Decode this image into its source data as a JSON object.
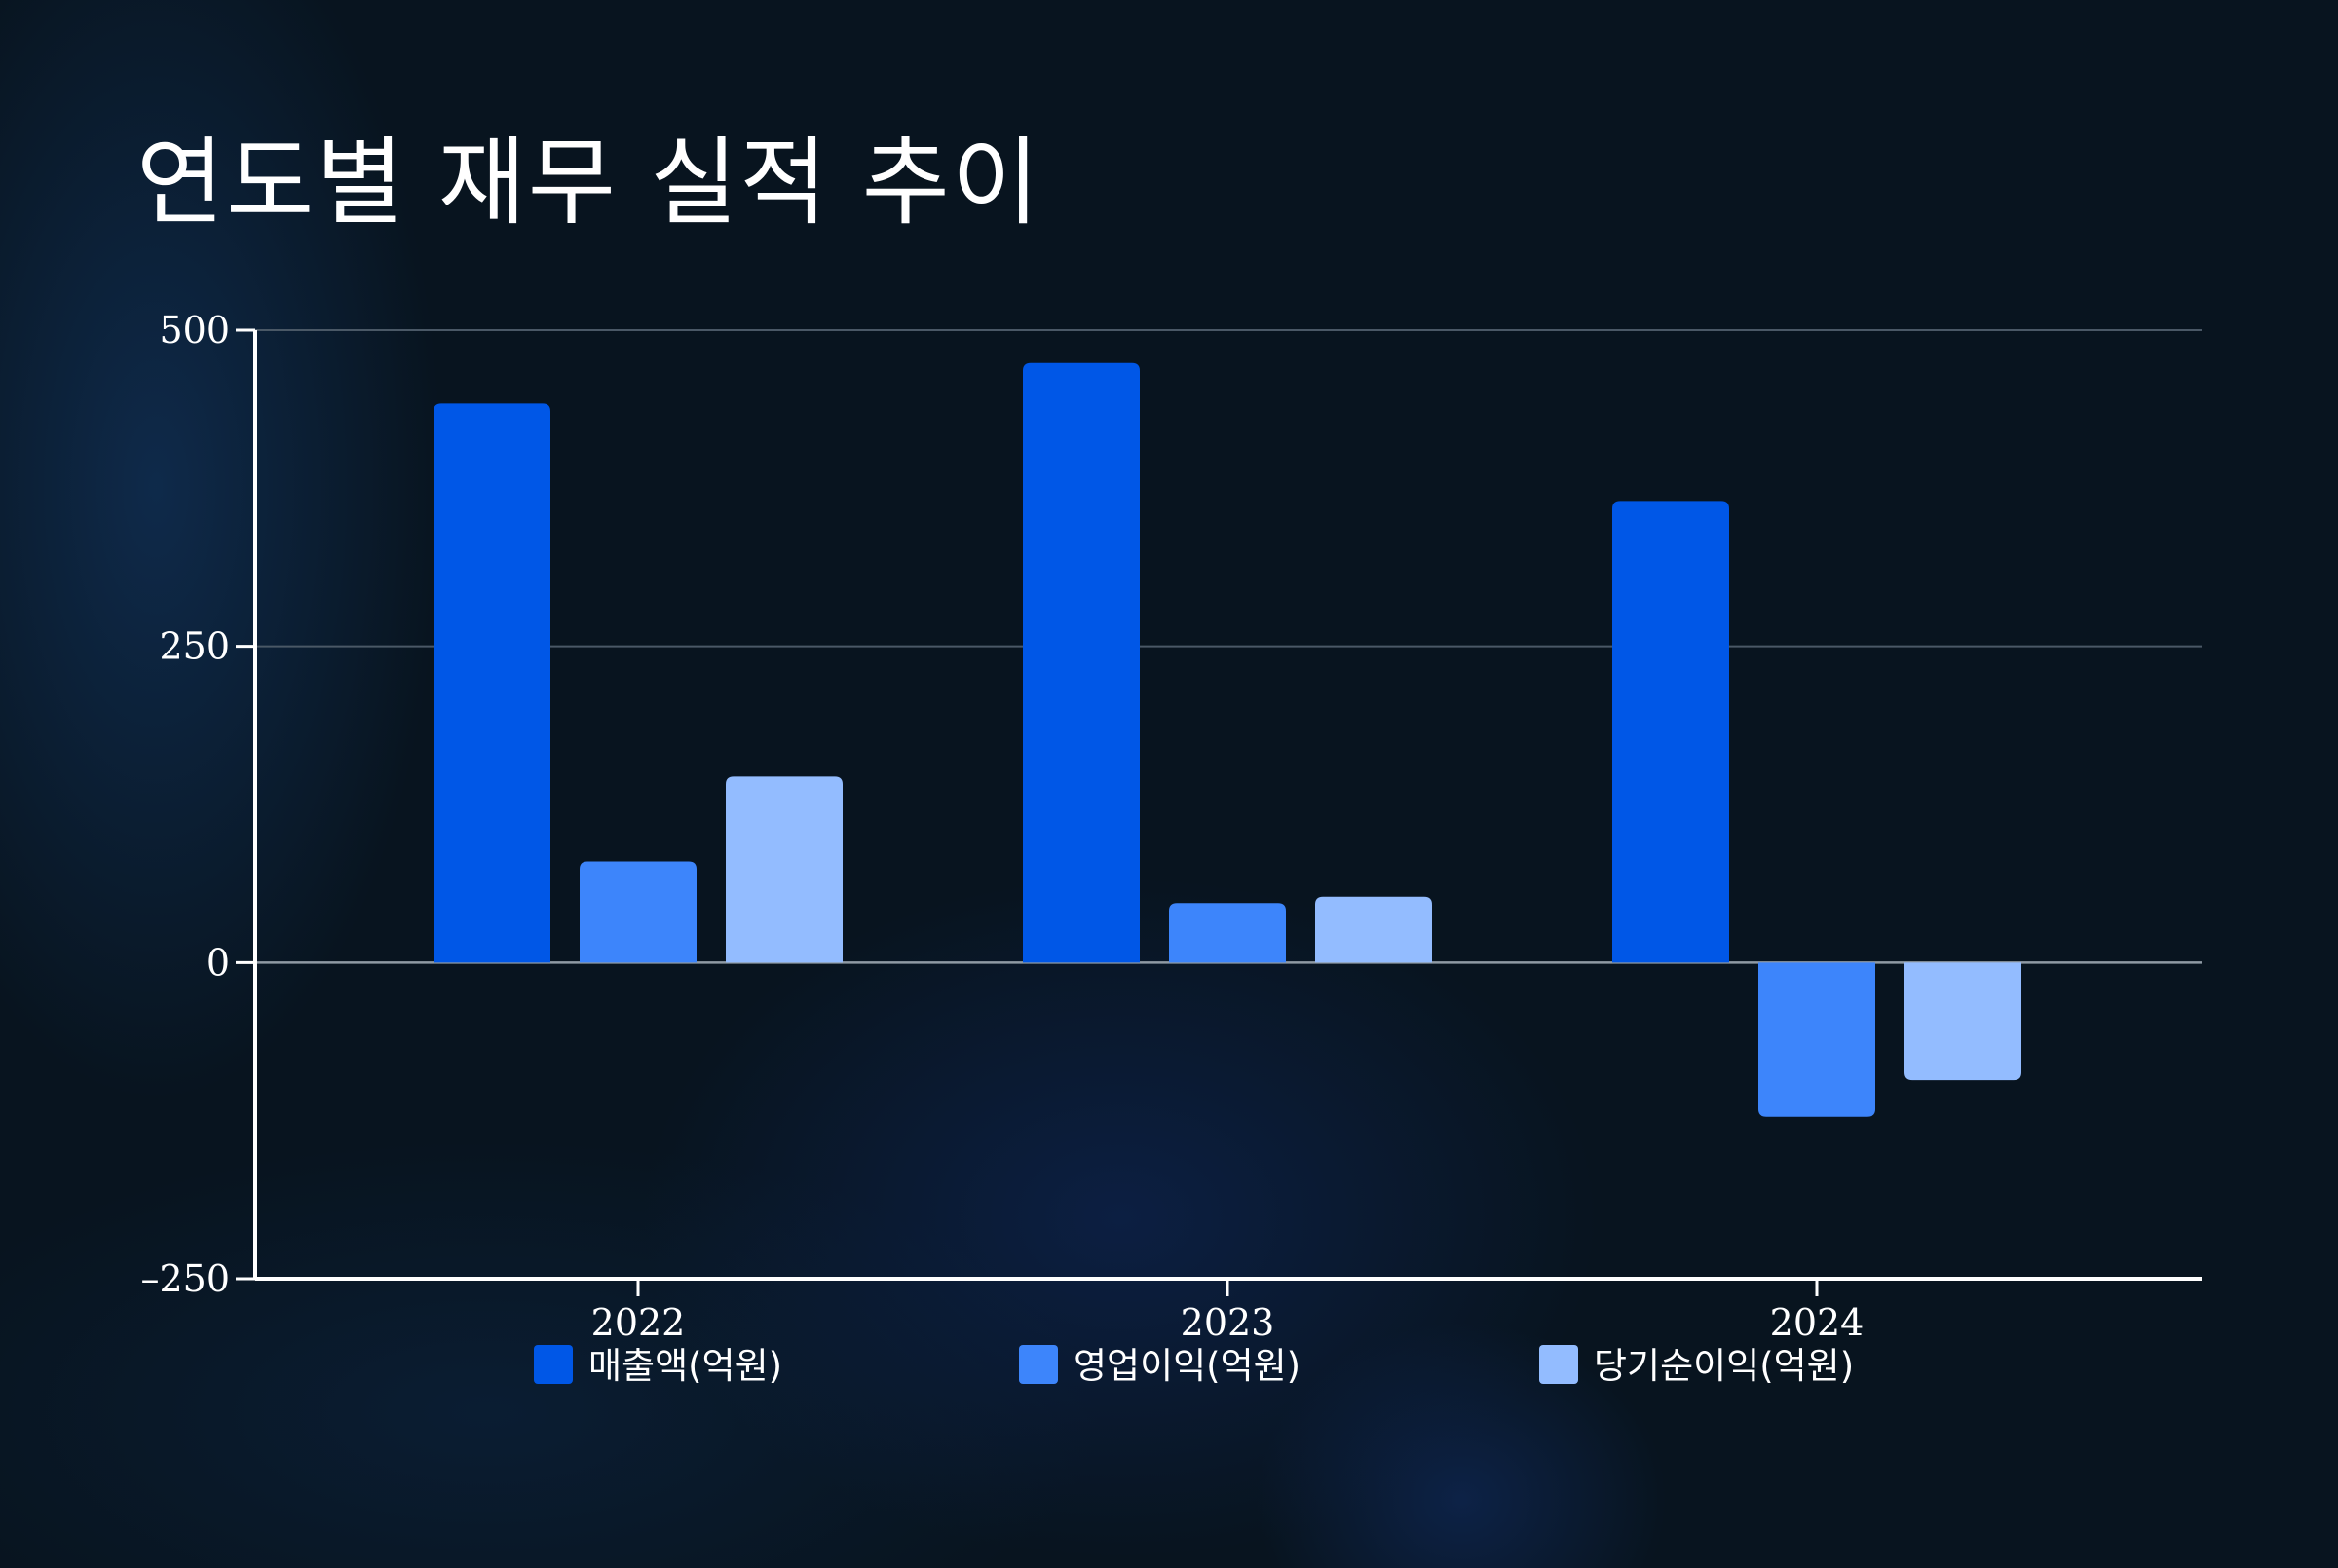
{
  "chart_data": {
    "type": "bar",
    "title": "연도별 재무 실적 추이",
    "categories": [
      "2022",
      "2023",
      "2024"
    ],
    "series": [
      {
        "name": "매출액(억원)",
        "values": [
          442,
          474,
          365
        ],
        "color": "#0057e7"
      },
      {
        "name": "영업이익(억원)",
        "values": [
          80,
          47,
          -122
        ],
        "color": "#3d85fb"
      },
      {
        "name": "당기순이익(억원)",
        "values": [
          147,
          52,
          -93
        ],
        "color": "#93bcff"
      }
    ],
    "ylim": [
      -250,
      500
    ],
    "yticks": [
      -250,
      0,
      250,
      500
    ],
    "grid": true,
    "legend_position": "bottom"
  },
  "colors": {
    "background": "#08141f",
    "axis": "#ffffff",
    "grid": "#4a5866",
    "zero_line": "#8f9aa4"
  }
}
